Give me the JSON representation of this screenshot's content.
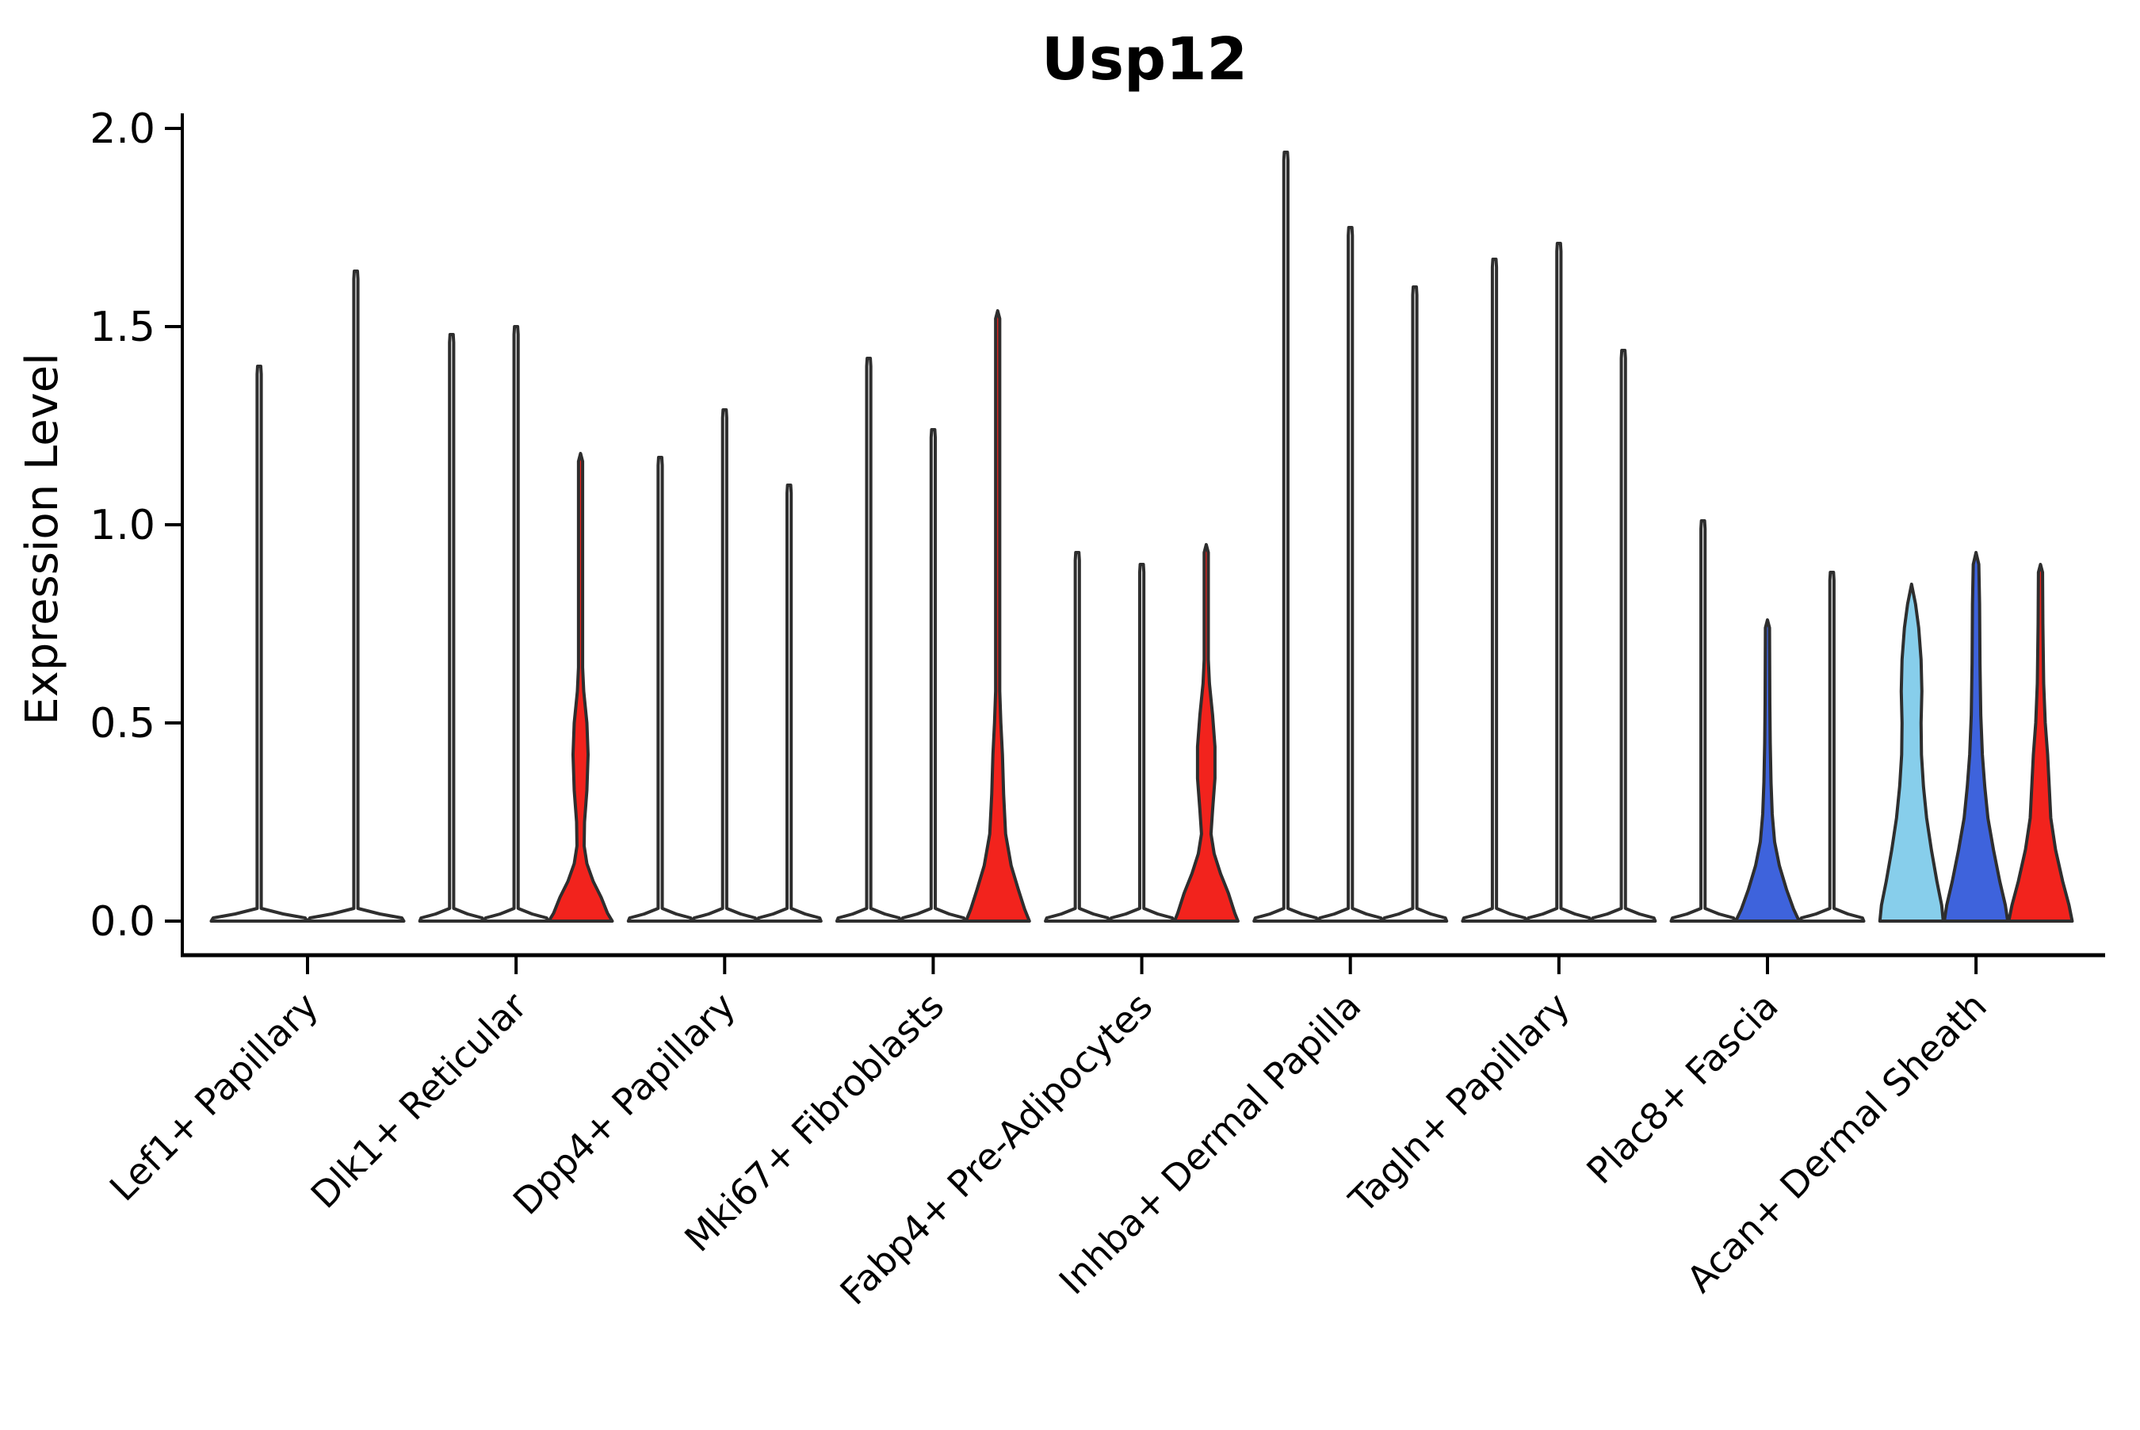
{
  "chart_data": {
    "type": "violin",
    "title": "Usp12",
    "ylabel": "Expression Level",
    "xlabel": "",
    "ylim": [
      0.0,
      2.0
    ],
    "grid": false,
    "legend": "none",
    "y_ticks": [
      {
        "label": "2.0",
        "value": 2.0
      },
      {
        "label": "1.5",
        "value": 1.5
      },
      {
        "label": "1.0",
        "value": 1.0
      },
      {
        "label": "0.5",
        "value": 0.5
      },
      {
        "label": "0.0",
        "value": 0.0
      }
    ],
    "colors": {
      "outline": "#2E2E2E",
      "lightblue": "#87CEEB",
      "blue": "#3E63DC",
      "red": "#F2231D",
      "unfilled": "#FFFFFF"
    },
    "categories": [
      {
        "label": "Lef1+ Papillary",
        "violins": [
          {
            "type": "spike",
            "max": 1.4,
            "fill": "#FFFFFF"
          },
          {
            "type": "spike",
            "max": 1.64,
            "fill": "#FFFFFF"
          }
        ]
      },
      {
        "label": "Dlk1+ Reticular",
        "violins": [
          {
            "type": "spike",
            "max": 1.48,
            "fill": "#FFFFFF"
          },
          {
            "type": "spike",
            "max": 1.5,
            "fill": "#FFFFFF"
          },
          {
            "type": "shaped",
            "max": 1.18,
            "fill": "#F2231D",
            "profile": [
              [
                0,
                40
              ],
              [
                0.02,
                34
              ],
              [
                0.06,
                26
              ],
              [
                0.1,
                16
              ],
              [
                0.145,
                8
              ],
              [
                0.19,
                4.5
              ],
              [
                0.25,
                5
              ],
              [
                0.33,
                8
              ],
              [
                0.42,
                9.5
              ],
              [
                0.5,
                8
              ],
              [
                0.58,
                4
              ],
              [
                0.64,
                2.6
              ],
              [
                1.16,
                2.6
              ],
              [
                1.18,
                0
              ]
            ]
          }
        ]
      },
      {
        "label": "Dpp4+ Papillary",
        "violins": [
          {
            "type": "spike",
            "max": 1.17,
            "fill": "#FFFFFF"
          },
          {
            "type": "spike",
            "max": 1.29,
            "fill": "#FFFFFF"
          },
          {
            "type": "spike",
            "max": 1.1,
            "fill": "#FFFFFF"
          }
        ]
      },
      {
        "label": "Mki67+ Fibroblasts",
        "violins": [
          {
            "type": "spike",
            "max": 1.42,
            "fill": "#FFFFFF"
          },
          {
            "type": "spike",
            "max": 1.24,
            "fill": "#FFFFFF"
          },
          {
            "type": "shaped",
            "max": 1.54,
            "fill": "#F2231D",
            "profile": [
              [
                0,
                40
              ],
              [
                0.03,
                34
              ],
              [
                0.08,
                26
              ],
              [
                0.14,
                17
              ],
              [
                0.22,
                10
              ],
              [
                0.32,
                7.5
              ],
              [
                0.42,
                6
              ],
              [
                0.5,
                4
              ],
              [
                0.58,
                2.6
              ],
              [
                1.52,
                2.6
              ],
              [
                1.54,
                0
              ]
            ]
          }
        ]
      },
      {
        "label": "Fabp4+ Pre-Adipocytes",
        "violins": [
          {
            "type": "spike",
            "max": 0.93,
            "fill": "#FFFFFF"
          },
          {
            "type": "spike",
            "max": 0.9,
            "fill": "#FFFFFF"
          },
          {
            "type": "shaped",
            "max": 0.95,
            "fill": "#F2231D",
            "profile": [
              [
                0,
                40
              ],
              [
                0.02,
                36
              ],
              [
                0.07,
                28
              ],
              [
                0.12,
                18
              ],
              [
                0.17,
                10
              ],
              [
                0.22,
                6
              ],
              [
                0.28,
                8
              ],
              [
                0.36,
                11
              ],
              [
                0.44,
                11
              ],
              [
                0.52,
                8
              ],
              [
                0.6,
                4
              ],
              [
                0.66,
                2.6
              ],
              [
                0.93,
                2.6
              ],
              [
                0.95,
                0
              ]
            ]
          }
        ]
      },
      {
        "label": "Inhba+ Dermal Papilla",
        "violins": [
          {
            "type": "spike",
            "max": 1.94,
            "fill": "#FFFFFF"
          },
          {
            "type": "spike",
            "max": 1.75,
            "fill": "#FFFFFF"
          },
          {
            "type": "spike",
            "max": 1.6,
            "fill": "#FFFFFF"
          }
        ]
      },
      {
        "label": "Tagln+ Papillary",
        "violins": [
          {
            "type": "spike",
            "max": 1.67,
            "fill": "#FFFFFF"
          },
          {
            "type": "spike",
            "max": 1.71,
            "fill": "#FFFFFF"
          },
          {
            "type": "spike",
            "max": 1.44,
            "fill": "#FFFFFF"
          }
        ]
      },
      {
        "label": "Plac8+ Fascia",
        "violins": [
          {
            "type": "spike",
            "max": 1.01,
            "fill": "#FFFFFF"
          },
          {
            "type": "shaped",
            "max": 0.76,
            "fill": "#3E63DC",
            "profile": [
              [
                0,
                40
              ],
              [
                0.03,
                33
              ],
              [
                0.08,
                24
              ],
              [
                0.14,
                15
              ],
              [
                0.2,
                9
              ],
              [
                0.27,
                6
              ],
              [
                0.35,
                4.5
              ],
              [
                0.45,
                3.5
              ],
              [
                0.55,
                3
              ],
              [
                0.74,
                2.6
              ],
              [
                0.76,
                0
              ]
            ]
          },
          {
            "type": "spike",
            "max": 0.88,
            "fill": "#FFFFFF"
          }
        ]
      },
      {
        "label": "Acan+ Dermal Sheath",
        "violins": [
          {
            "type": "shaped",
            "max": 0.85,
            "fill": "#87CEEB",
            "profile": [
              [
                0,
                40
              ],
              [
                0.04,
                38
              ],
              [
                0.1,
                32
              ],
              [
                0.18,
                25
              ],
              [
                0.26,
                19
              ],
              [
                0.34,
                15
              ],
              [
                0.42,
                12.5
              ],
              [
                0.5,
                12
              ],
              [
                0.58,
                13
              ],
              [
                0.66,
                12
              ],
              [
                0.74,
                9
              ],
              [
                0.8,
                5
              ],
              [
                0.85,
                0
              ]
            ]
          },
          {
            "type": "shaped",
            "max": 0.93,
            "fill": "#3E63DC",
            "profile": [
              [
                0,
                40
              ],
              [
                0.04,
                37
              ],
              [
                0.1,
                30
              ],
              [
                0.18,
                22
              ],
              [
                0.26,
                15
              ],
              [
                0.34,
                11
              ],
              [
                0.42,
                8
              ],
              [
                0.52,
                6
              ],
              [
                0.65,
                5
              ],
              [
                0.8,
                4.5
              ],
              [
                0.9,
                3.5
              ],
              [
                0.93,
                0
              ]
            ]
          },
          {
            "type": "shaped",
            "max": 0.9,
            "fill": "#F2231D",
            "profile": [
              [
                0,
                40
              ],
              [
                0.04,
                36
              ],
              [
                0.1,
                28
              ],
              [
                0.18,
                19
              ],
              [
                0.26,
                13
              ],
              [
                0.34,
                11
              ],
              [
                0.42,
                9
              ],
              [
                0.5,
                6
              ],
              [
                0.6,
                4
              ],
              [
                0.75,
                3
              ],
              [
                0.88,
                2.6
              ],
              [
                0.9,
                0
              ]
            ]
          }
        ]
      }
    ]
  }
}
